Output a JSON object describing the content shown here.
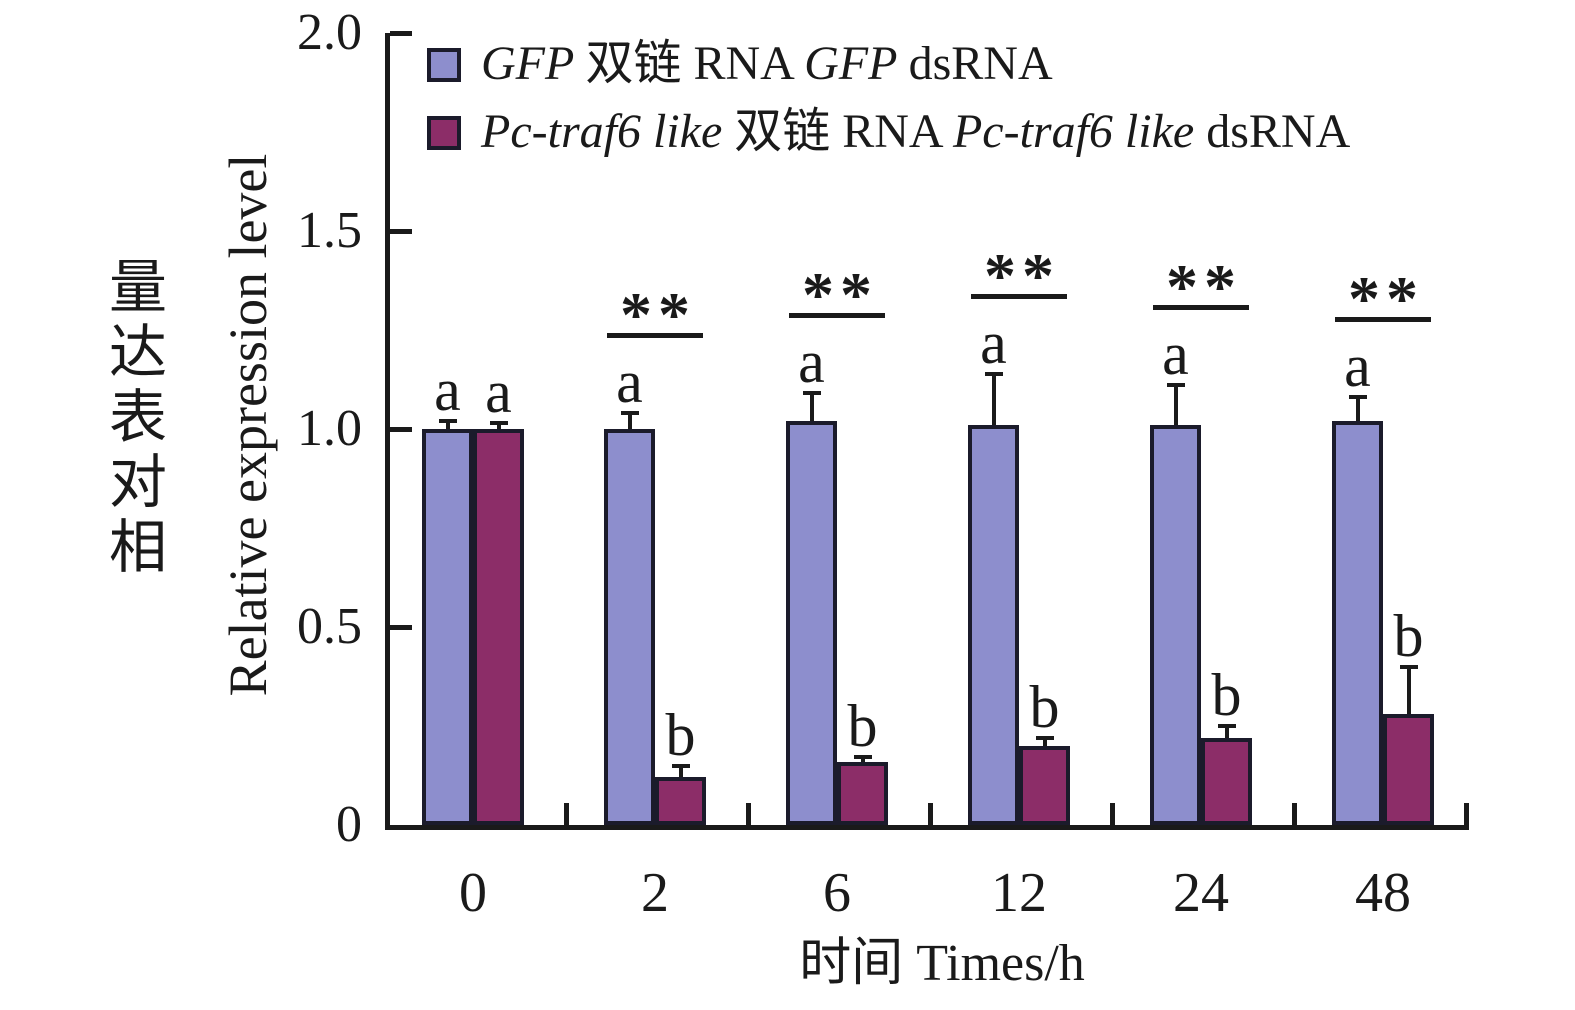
{
  "figure": {
    "ylabel_cn": "相对表达量",
    "ylabel_en": "Relative expression level",
    "xlabel": "时间 Times/h"
  },
  "legend": {
    "items": [
      {
        "color": "#8d8ecd",
        "segments": [
          {
            "text": "GFP ",
            "italic": true
          },
          {
            "text": "双链 RNA ",
            "italic": false
          },
          {
            "text": "GFP ",
            "italic": true
          },
          {
            "text": "dsRNA",
            "italic": false
          }
        ]
      },
      {
        "color": "#8c2d68",
        "segments": [
          {
            "text": "Pc-traf6 like ",
            "italic": true
          },
          {
            "text": "双链 RNA ",
            "italic": false
          },
          {
            "text": "Pc-traf6 like ",
            "italic": true
          },
          {
            "text": "dsRNA",
            "italic": false
          }
        ]
      }
    ]
  },
  "chart_data": {
    "type": "bar",
    "title": "",
    "xlabel": "时间 Times/h",
    "ylabel": "相对表达量 Relative expression level",
    "categories": [
      "0",
      "2",
      "6",
      "12",
      "24",
      "48"
    ],
    "ylim": [
      0,
      2.0
    ],
    "yticks": [
      0,
      0.5,
      1.0,
      1.5,
      2.0
    ],
    "ytick_labels": [
      "0",
      "0.5",
      "1.0",
      "1.5",
      "2.0"
    ],
    "grid": false,
    "legend_position": "top-left-inside",
    "axis_color": "#1a1a1a",
    "series": [
      {
        "name": "GFP 双链 RNA GFP dsRNA",
        "color": "#8d8ecd",
        "values": [
          1.0,
          1.0,
          1.02,
          1.01,
          1.01,
          1.02
        ],
        "errors_upper": [
          0.02,
          0.04,
          0.07,
          0.13,
          0.1,
          0.06
        ],
        "letters": [
          "a",
          "a",
          "a",
          "a",
          "a",
          "a"
        ]
      },
      {
        "name": "Pc-traf6 like 双链 RNA Pc-traf6 like dsRNA",
        "color": "#8c2d68",
        "values": [
          1.0,
          0.12,
          0.16,
          0.2,
          0.22,
          0.28
        ],
        "errors_upper": [
          0.015,
          0.03,
          0.012,
          0.02,
          0.03,
          0.12
        ],
        "letters": [
          "a",
          "b",
          "b",
          "b",
          "b",
          "b"
        ]
      }
    ],
    "significance": [
      {
        "category": "2",
        "label": "**"
      },
      {
        "category": "6",
        "label": "**"
      },
      {
        "category": "12",
        "label": "**"
      },
      {
        "category": "24",
        "label": "**"
      },
      {
        "category": "48",
        "label": "**"
      }
    ]
  }
}
